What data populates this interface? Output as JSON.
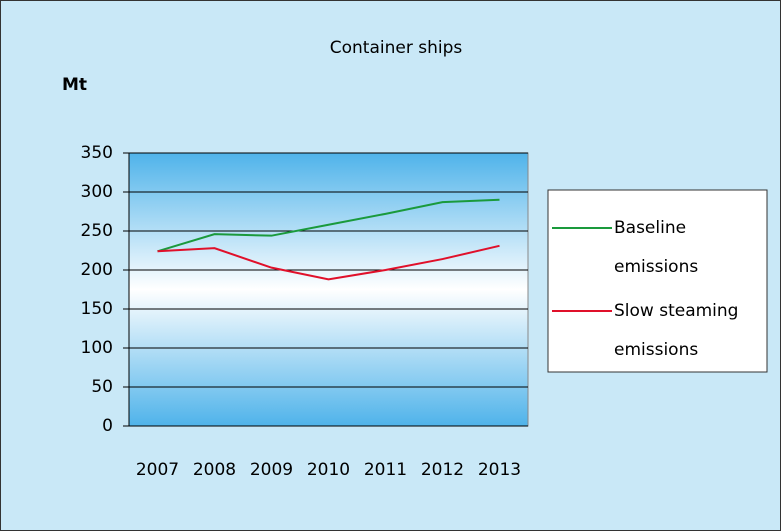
{
  "chart_data": {
    "type": "line",
    "title": "Container ships",
    "y_label": "Mt",
    "categories": [
      "2007",
      "2008",
      "2009",
      "2010",
      "2011",
      "2012",
      "2013"
    ],
    "series": [
      {
        "name": "Baseline emissions",
        "color": "#1a9a3c",
        "values": [
          224,
          246,
          244,
          258,
          272,
          287,
          290
        ]
      },
      {
        "name": "Slow steaming emissions",
        "color": "#e0102a",
        "values": [
          224,
          228,
          203,
          188,
          200,
          214,
          231
        ]
      }
    ],
    "ylim": [
      0,
      350
    ],
    "yticks": [
      0,
      50,
      100,
      150,
      200,
      250,
      300,
      350
    ],
    "grid": true,
    "legend": "right"
  }
}
